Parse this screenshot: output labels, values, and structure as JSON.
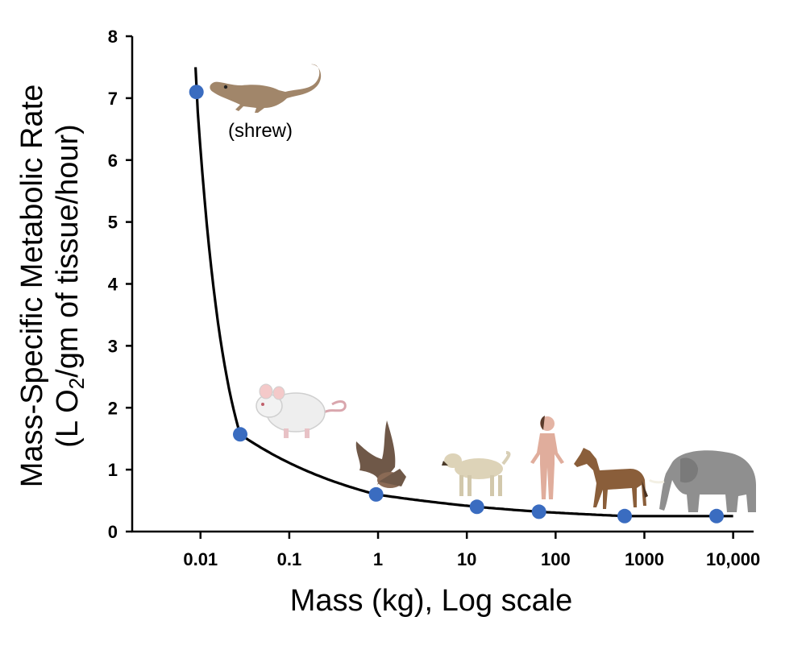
{
  "chart_data": {
    "type": "scatter",
    "xlabel": "Mass (kg), Log scale",
    "ylabel_line1": "Mass-Specific Metabolic Rate",
    "ylabel_line2_prefix": "(L O",
    "ylabel_line2_sub": "2",
    "ylabel_line2_suffix": "/gm of tissue/hour)",
    "x_scale": "log",
    "xlim": [
      0.0017,
      17000
    ],
    "ylim": [
      0,
      8
    ],
    "x_ticks": [
      0.01,
      0.1,
      1,
      10,
      100,
      1000,
      10000
    ],
    "x_tick_labels": [
      "0.01",
      "0.1",
      "1",
      "10",
      "100",
      "1000",
      "10,000"
    ],
    "y_ticks": [
      0,
      1,
      2,
      3,
      4,
      5,
      6,
      7,
      8
    ],
    "y_tick_labels": [
      "0",
      "1",
      "2",
      "3",
      "4",
      "5",
      "6",
      "7",
      "8"
    ],
    "grid": false,
    "series": [
      {
        "values_x": [
          0.009,
          0.028,
          0.95,
          13,
          65,
          600,
          6500
        ],
        "values_y": [
          7.1,
          1.57,
          0.6,
          0.4,
          0.32,
          0.25,
          0.25
        ],
        "animals": [
          "shrew-icon",
          "mouse-icon",
          "bat-icon",
          "dog-icon",
          "human-icon",
          "horse-icon",
          "elephant-icon"
        ],
        "color": "#3a6cc0"
      }
    ],
    "curve": {
      "type": "fit",
      "color": "#000000",
      "x_start": 0.0088,
      "x_end": 10000
    },
    "annotations": [
      {
        "text": "(shrew)"
      }
    ]
  },
  "colors": {
    "point": "#3a6cc0",
    "curve": "#000000",
    "axis": "#000000"
  }
}
